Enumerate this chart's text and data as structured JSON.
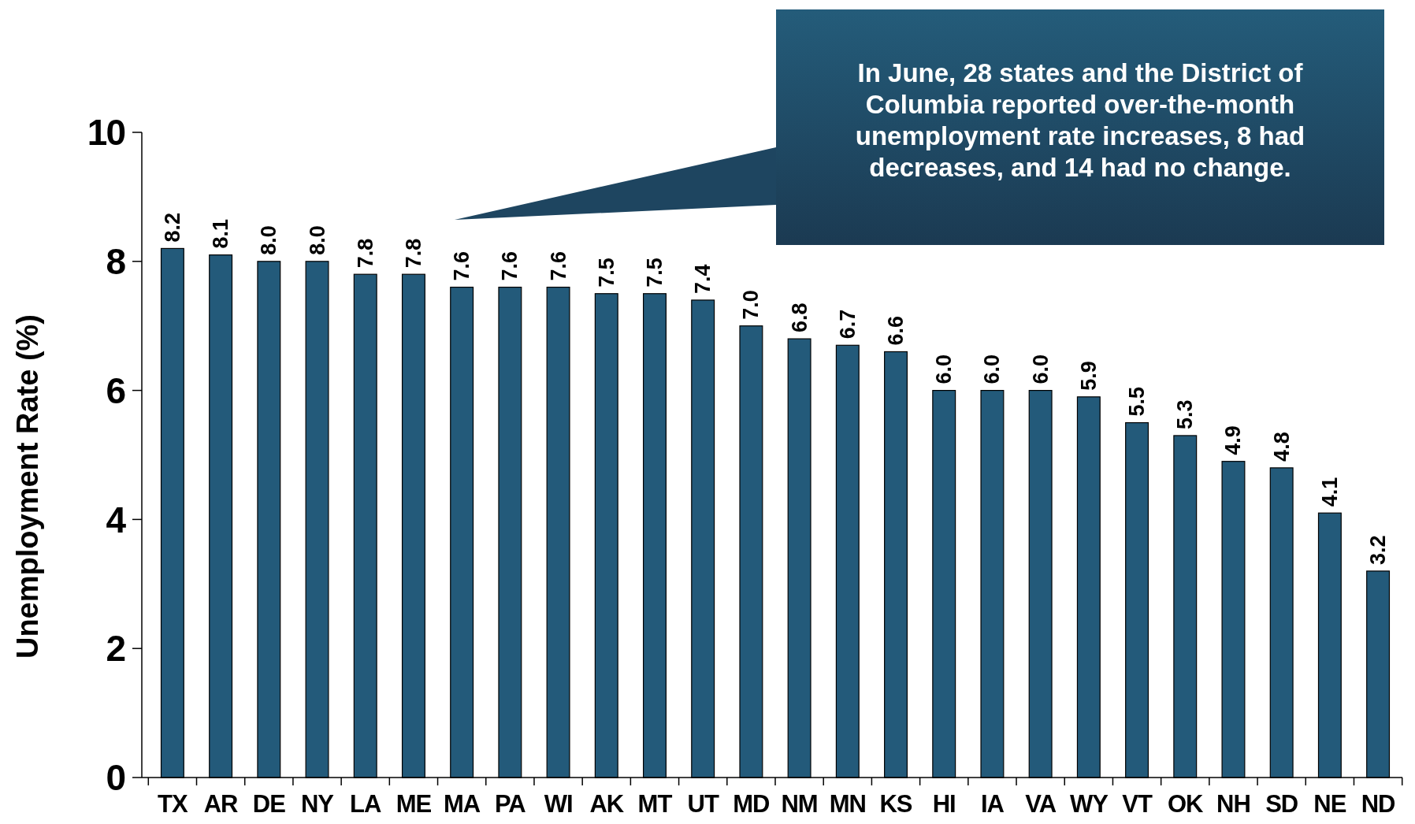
{
  "chart_data": {
    "type": "bar",
    "ylabel": "Unemployment Rate (%)",
    "categories": [
      "TX",
      "AR",
      "DE",
      "NY",
      "LA",
      "ME",
      "MA",
      "PA",
      "WI",
      "AK",
      "MT",
      "UT",
      "MD",
      "NM",
      "MN",
      "KS",
      "HI",
      "IA",
      "VA",
      "WY",
      "VT",
      "OK",
      "NH",
      "SD",
      "NE",
      "ND"
    ],
    "values": [
      8.2,
      8.1,
      8.0,
      8.0,
      7.8,
      7.8,
      7.6,
      7.6,
      7.6,
      7.5,
      7.5,
      7.4,
      7.0,
      6.8,
      6.7,
      6.6,
      6.0,
      6.0,
      6.0,
      5.9,
      5.5,
      5.3,
      4.9,
      4.8,
      4.1,
      3.2
    ],
    "value_labels": [
      "8.2",
      "8.1",
      "8.0",
      "8.0",
      "7.8",
      "7.8",
      "7.6",
      "7.6",
      "7.6",
      "7.5",
      "7.5",
      "7.4",
      "7.0",
      "6.8",
      "6.7",
      "6.6",
      "6.0",
      "6.0",
      "6.0",
      "5.9",
      "5.5",
      "5.3",
      "4.9",
      "4.8",
      "4.1",
      "3.2"
    ],
    "color": "#235a7a",
    "ylim": [
      0,
      10
    ],
    "yticks": [
      0,
      2,
      4,
      6,
      8,
      10
    ],
    "grid": false,
    "annotations": [
      "In June, 28 states and the District of Columbia reported over-the-month unemployment rate increases, 8 had decreases, and 14 had no change."
    ]
  }
}
